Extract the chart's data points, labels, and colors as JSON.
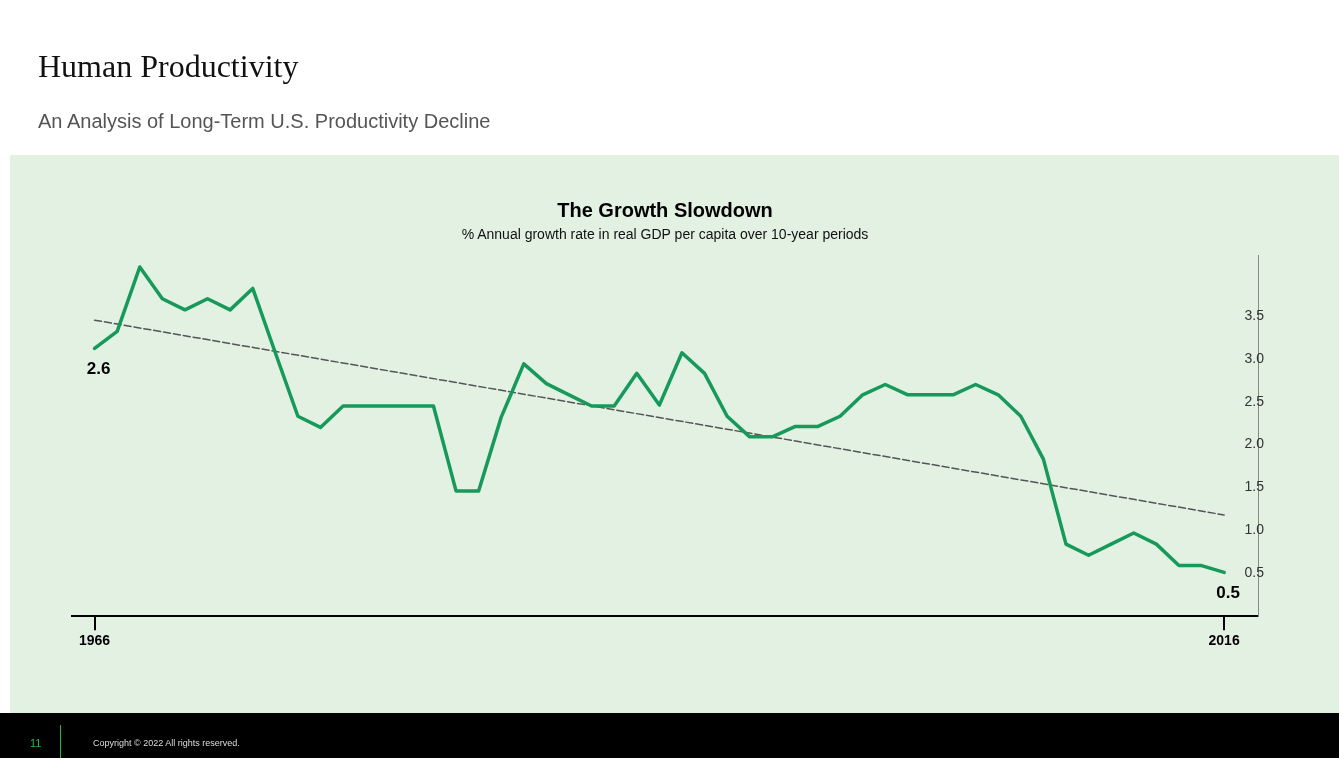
{
  "chart_data": {
    "type": "line",
    "title": "The Growth Slowdown",
    "subtitle": "% Annual growth rate in real GDP per capita over 10-year periods",
    "x": [
      1966,
      1967,
      1968,
      1969,
      1970,
      1971,
      1972,
      1973,
      1974,
      1975,
      1976,
      1977,
      1978,
      1979,
      1980,
      1981,
      1982,
      1983,
      1984,
      1985,
      1986,
      1987,
      1988,
      1989,
      1990,
      1991,
      1992,
      1993,
      1994,
      1995,
      1996,
      1997,
      1998,
      1999,
      2000,
      2001,
      2002,
      2003,
      2004,
      2005,
      2006,
      2007,
      2008,
      2009,
      2010,
      2011,
      2012,
      2013,
      2014,
      2015,
      2016
    ],
    "series": [
      {
        "color": "#16995a",
        "values": [
          3.12,
          3.32,
          4.07,
          3.7,
          3.57,
          3.7,
          3.57,
          3.82,
          3.07,
          2.33,
          2.2,
          2.45,
          2.45,
          2.45,
          2.45,
          2.45,
          1.46,
          1.46,
          2.32,
          2.94,
          2.71,
          2.58,
          2.45,
          2.45,
          2.83,
          2.46,
          3.07,
          2.83,
          2.33,
          2.09,
          2.09,
          2.21,
          2.21,
          2.33,
          2.58,
          2.7,
          2.58,
          2.58,
          2.58,
          2.7,
          2.58,
          2.33,
          1.83,
          0.84,
          0.71,
          0.84,
          0.97,
          0.84,
          0.59,
          0.59,
          0.51
        ]
      },
      {
        "type": "line",
        "color": "#555555",
        "line_style": "dashed",
        "x": [
          1966,
          2016
        ],
        "values": [
          3.45,
          1.18
        ]
      }
    ],
    "xlim": [
      1965,
      2017.5
    ],
    "xticks": [
      1966,
      2016
    ],
    "ylim": [
      0,
      4.2
    ],
    "yticks": [
      0.5,
      {
        "value": 1,
        "label": "1.0"
      },
      1.5,
      {
        "value": 2,
        "label": "2.0"
      },
      2.5,
      {
        "value": 3,
        "label": "3.0"
      },
      3.5
    ],
    "grid": false,
    "legend": false,
    "marker": "none",
    "line_style": "solid",
    "annotations": [
      "Human Productivity",
      "An Analysis of Long-Term U.S. Productivity Decline",
      {
        "text": "2.6",
        "x": 1966,
        "y": 3.12
      },
      {
        "text": "0.5",
        "x": 2016,
        "y": 0.51
      },
      "11",
      "Copyright © 2022 All rights reserved."
    ]
  }
}
